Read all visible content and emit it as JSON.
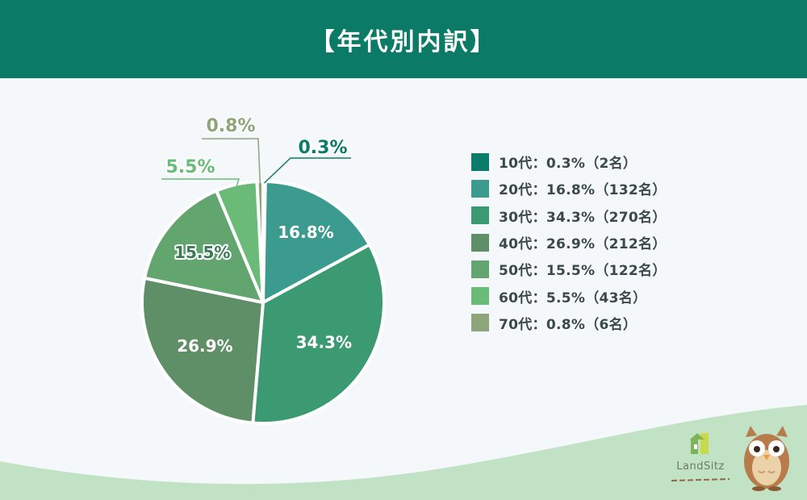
{
  "header": {
    "title": "【年代別内訳】"
  },
  "colors": {
    "header_bg": "#0b7b67",
    "background": "#f5f8fa",
    "wave": "#bfe1c4"
  },
  "chart_data": {
    "type": "pie",
    "title": "【年代別内訳】",
    "start_angle_deg": 0,
    "direction": "clockwise",
    "slices": [
      {
        "label": "10代",
        "value": 0.3,
        "count": 2,
        "color": "#0b7b6a",
        "data_label": "0.3%",
        "legend": "10代：0.3%（2名）"
      },
      {
        "label": "20代",
        "value": 16.8,
        "count": 132,
        "color": "#3a9b8e",
        "data_label": "16.8%",
        "legend": "20代：16.8%（132名）"
      },
      {
        "label": "30代",
        "value": 34.3,
        "count": 270,
        "color": "#3b9a72",
        "data_label": "34.3%",
        "legend": "30代：34.3%（270名）"
      },
      {
        "label": "40代",
        "value": 26.9,
        "count": 212,
        "color": "#5e8f66",
        "data_label": "26.9%",
        "legend": "40代：26.9%（212名）"
      },
      {
        "label": "50代",
        "value": 15.5,
        "count": 122,
        "color": "#62a56f",
        "data_label": "15.5%",
        "legend": "50代：15.5%（122名）"
      },
      {
        "label": "60代",
        "value": 5.5,
        "count": 43,
        "color": "#69bb77",
        "data_label": "5.5%",
        "legend": "60代：5.5%（43名）"
      },
      {
        "label": "70代",
        "value": 0.8,
        "count": 6,
        "color": "#8ea57a",
        "data_label": "0.8%",
        "legend": "70代：0.8%（6名）"
      }
    ],
    "legend_position": "right"
  },
  "brand": {
    "name": "LandSitz"
  }
}
